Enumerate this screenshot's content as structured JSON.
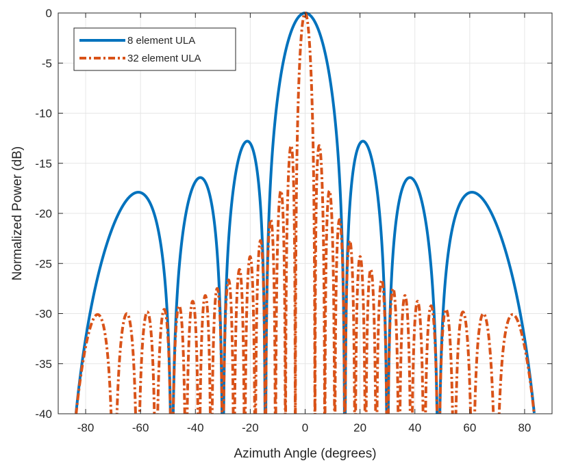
{
  "chart_data": {
    "type": "line",
    "title": "",
    "xlabel": "Azimuth Angle (degrees)",
    "ylabel": "Normalized Power (dB)",
    "xlim": [
      -90,
      90
    ],
    "ylim": [
      -40,
      0
    ],
    "xticks": [
      -80,
      -60,
      -40,
      -20,
      0,
      20,
      40,
      60,
      80
    ],
    "yticks": [
      0,
      -5,
      -10,
      -15,
      -20,
      -25,
      -30,
      -35,
      -40
    ],
    "xtick_labels": [
      "-80",
      "-60",
      "-40",
      "-20",
      "0",
      "20",
      "40",
      "60",
      "80"
    ],
    "ytick_labels": [
      "0",
      "-5",
      "-10",
      "-15",
      "-20",
      "-25",
      "-30",
      "-35",
      "-40"
    ],
    "grid": true,
    "legend_position": "top-left",
    "series": [
      {
        "name": "8 element ULA",
        "color": "#0072BD",
        "style": "solid",
        "elements": 8,
        "x_range": [
          -83.5,
          83.5
        ],
        "peaks": [
          {
            "x": 0,
            "y": 0
          },
          {
            "x": -21.5,
            "y": -12.8
          },
          {
            "x": 21.5,
            "y": -12.8
          },
          {
            "x": -38.5,
            "y": -16.5
          },
          {
            "x": 38.5,
            "y": -16.5
          },
          {
            "x": -61,
            "y": -17.9
          },
          {
            "x": 61,
            "y": -17.9
          }
        ],
        "nulls": [
          -14.5,
          -30,
          -48.6,
          14.5,
          30,
          48.6
        ]
      },
      {
        "name": "32 element ULA",
        "color": "#D95319",
        "style": "dashdot",
        "elements": 32,
        "x_range": [
          -83.5,
          83.5
        ],
        "peaks": [
          {
            "x": 0,
            "y": 0
          },
          {
            "x": -5,
            "y": -13.3
          },
          {
            "x": 5,
            "y": -13.3
          },
          {
            "x": -13,
            "y": -21.5
          },
          {
            "x": 13,
            "y": -21.5
          },
          {
            "x": -76,
            "y": -30.1
          },
          {
            "x": 76,
            "y": -30.1
          }
        ]
      }
    ]
  }
}
